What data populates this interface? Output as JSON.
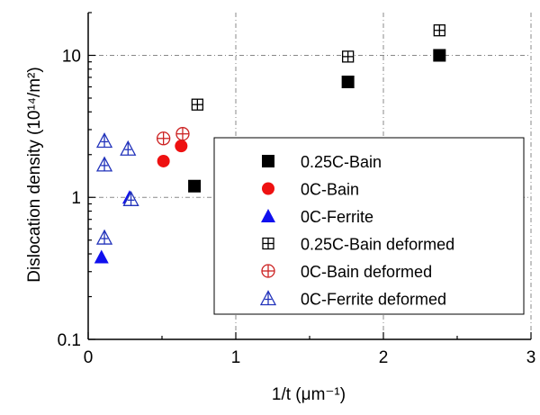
{
  "chart_data": {
    "type": "scatter",
    "title": "",
    "xlabel": "1/t (μm⁻¹)",
    "ylabel": "Dislocation density (10¹⁴/m²)",
    "xlim": [
      0,
      3
    ],
    "ylim": [
      0.1,
      20
    ],
    "yscale": "log",
    "grid": true,
    "legend_position": "center-right",
    "x_ticks": [
      {
        "value": 0,
        "label": "0"
      },
      {
        "value": 1,
        "label": "1"
      },
      {
        "value": 2,
        "label": "2"
      },
      {
        "value": 3,
        "label": "3"
      }
    ],
    "y_ticks": [
      {
        "value": 0.1,
        "label": "0.1"
      },
      {
        "value": 1,
        "label": "1"
      },
      {
        "value": 10,
        "label": "10"
      }
    ],
    "series": [
      {
        "name": "0.25C-Bain",
        "marker": "square-filled",
        "color": "#000000",
        "points": [
          {
            "x": 0.72,
            "y": 1.2
          },
          {
            "x": 1.76,
            "y": 6.5
          },
          {
            "x": 2.38,
            "y": 10.0
          }
        ]
      },
      {
        "name": "0C-Bain",
        "marker": "circle-filled",
        "color": "#ee1111",
        "points": [
          {
            "x": 0.51,
            "y": 1.8
          },
          {
            "x": 0.63,
            "y": 2.3
          }
        ]
      },
      {
        "name": "0C-Ferrite",
        "marker": "triangle-filled",
        "color": "#1010ee",
        "points": [
          {
            "x": 0.09,
            "y": 0.38
          },
          {
            "x": 0.28,
            "y": 1.0
          }
        ]
      },
      {
        "name": "0.25C-Bain deformed",
        "marker": "square-cross",
        "color": "#000000",
        "points": [
          {
            "x": 0.74,
            "y": 4.5
          },
          {
            "x": 1.76,
            "y": 9.8
          },
          {
            "x": 2.38,
            "y": 15.0
          }
        ]
      },
      {
        "name": "0C-Bain deformed",
        "marker": "circle-cross",
        "color": "#cc2222",
        "points": [
          {
            "x": 0.51,
            "y": 2.6
          },
          {
            "x": 0.64,
            "y": 2.8
          }
        ]
      },
      {
        "name": "0C-Ferrite deformed",
        "marker": "triangle-cross",
        "color": "#2233bb",
        "points": [
          {
            "x": 0.11,
            "y": 2.5
          },
          {
            "x": 0.11,
            "y": 1.7
          },
          {
            "x": 0.27,
            "y": 2.2
          },
          {
            "x": 0.29,
            "y": 0.97
          },
          {
            "x": 0.11,
            "y": 0.52
          }
        ]
      }
    ]
  }
}
